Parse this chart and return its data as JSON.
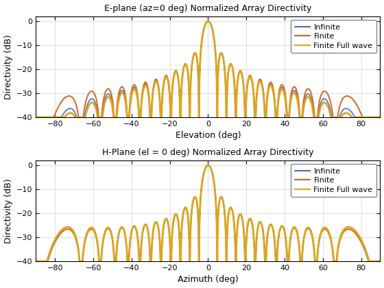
{
  "title1": "E-plane (az=0 deg) Normalized Array Directivity",
  "title2": "H-Plane (el = 0 deg) Normalized Array Directivity",
  "xlabel1": "Elevation (deg)",
  "xlabel2": "Azimuth (deg)",
  "ylabel": "Directivity (dB)",
  "ylim": [
    -40,
    2
  ],
  "xlim": [
    -90,
    90
  ],
  "yticks": [
    0,
    -10,
    -20,
    -30,
    -40
  ],
  "xticks": [
    -80,
    -60,
    -40,
    -20,
    0,
    20,
    40,
    60,
    80
  ],
  "legend_labels": [
    "Infinite",
    "Finite",
    "Finite Full wave"
  ],
  "colors_infinite": "#4472C4",
  "colors_finite": "#D2691E",
  "colors_fullwave": "#DAA520",
  "lw_infinite": 1.2,
  "lw_finite": 1.4,
  "lw_fullwave": 2.0,
  "figsize": [
    5.6,
    4.2
  ],
  "dpi": 100,
  "n_elements": 20,
  "d_over_lambda": 0.6,
  "clip_dB": -40
}
